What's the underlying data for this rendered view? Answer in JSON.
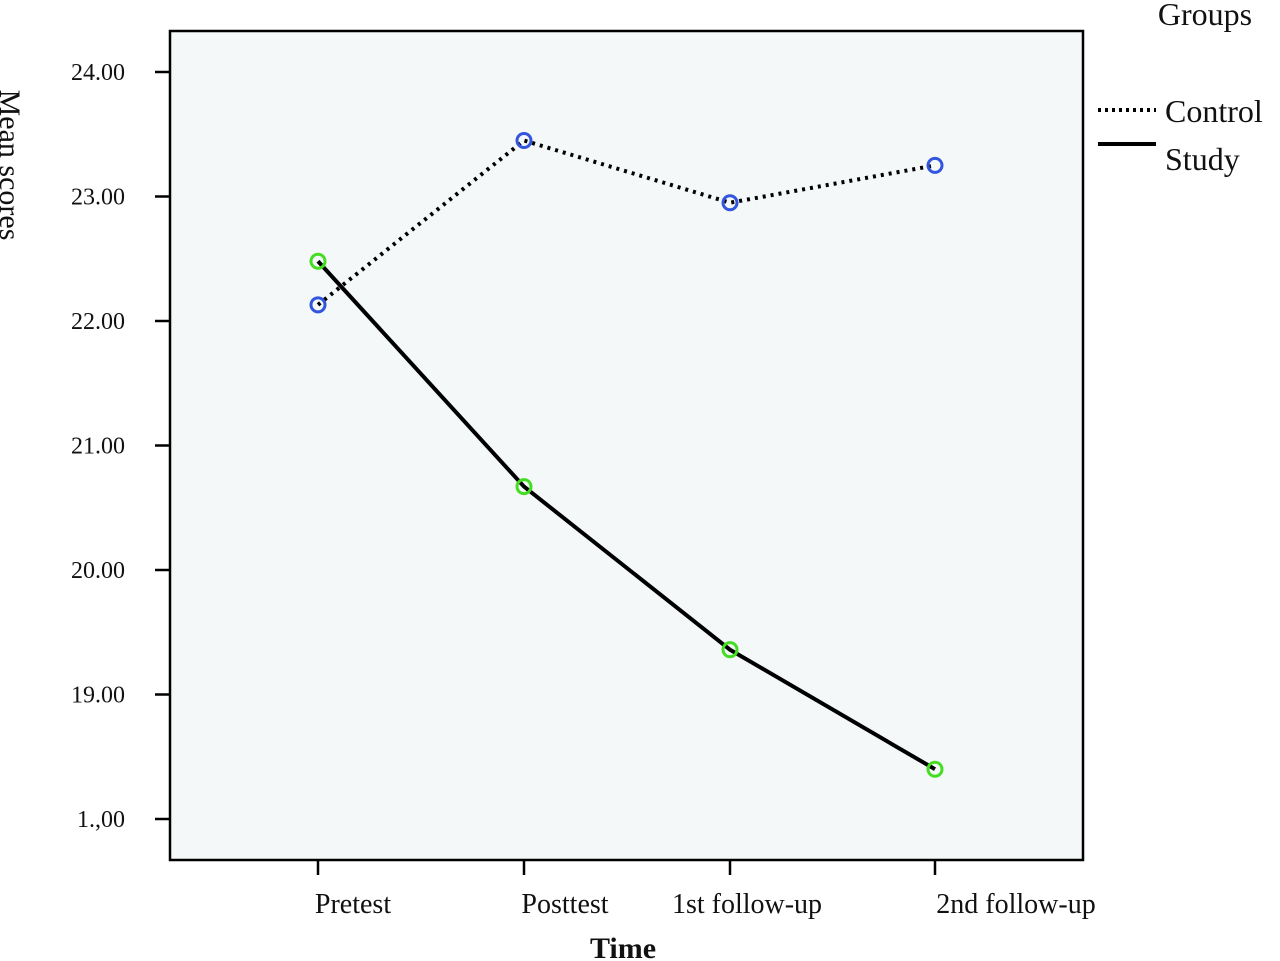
{
  "chart_data": {
    "type": "line",
    "xlabel": "Time",
    "ylabel": "Mean scores",
    "categories": [
      "Pretest",
      "Posttest",
      "1st follow-up",
      "2nd follow-up"
    ],
    "y_tick_labels": [
      "1.,00",
      "19.00",
      "20.00",
      "21.00",
      "22.00",
      "23.00",
      "24.00"
    ],
    "ylim": [
      17.6,
      24.35
    ],
    "grid": false,
    "legend": {
      "title": "Groups",
      "placement": "top-right",
      "entries": [
        "Control",
        "Study"
      ]
    },
    "series": [
      {
        "name": "Control",
        "values": [
          22.13,
          23.45,
          22.95,
          23.25
        ],
        "line_style": "dotted",
        "marker_color": "#3355dd"
      },
      {
        "name": "Study",
        "values": [
          22.48,
          20.67,
          19.36,
          18.4
        ],
        "line_style": "solid",
        "marker_color": "#44dd22"
      }
    ],
    "colors": {
      "plot_background": "#f4f8f8",
      "line": "#000000"
    }
  }
}
